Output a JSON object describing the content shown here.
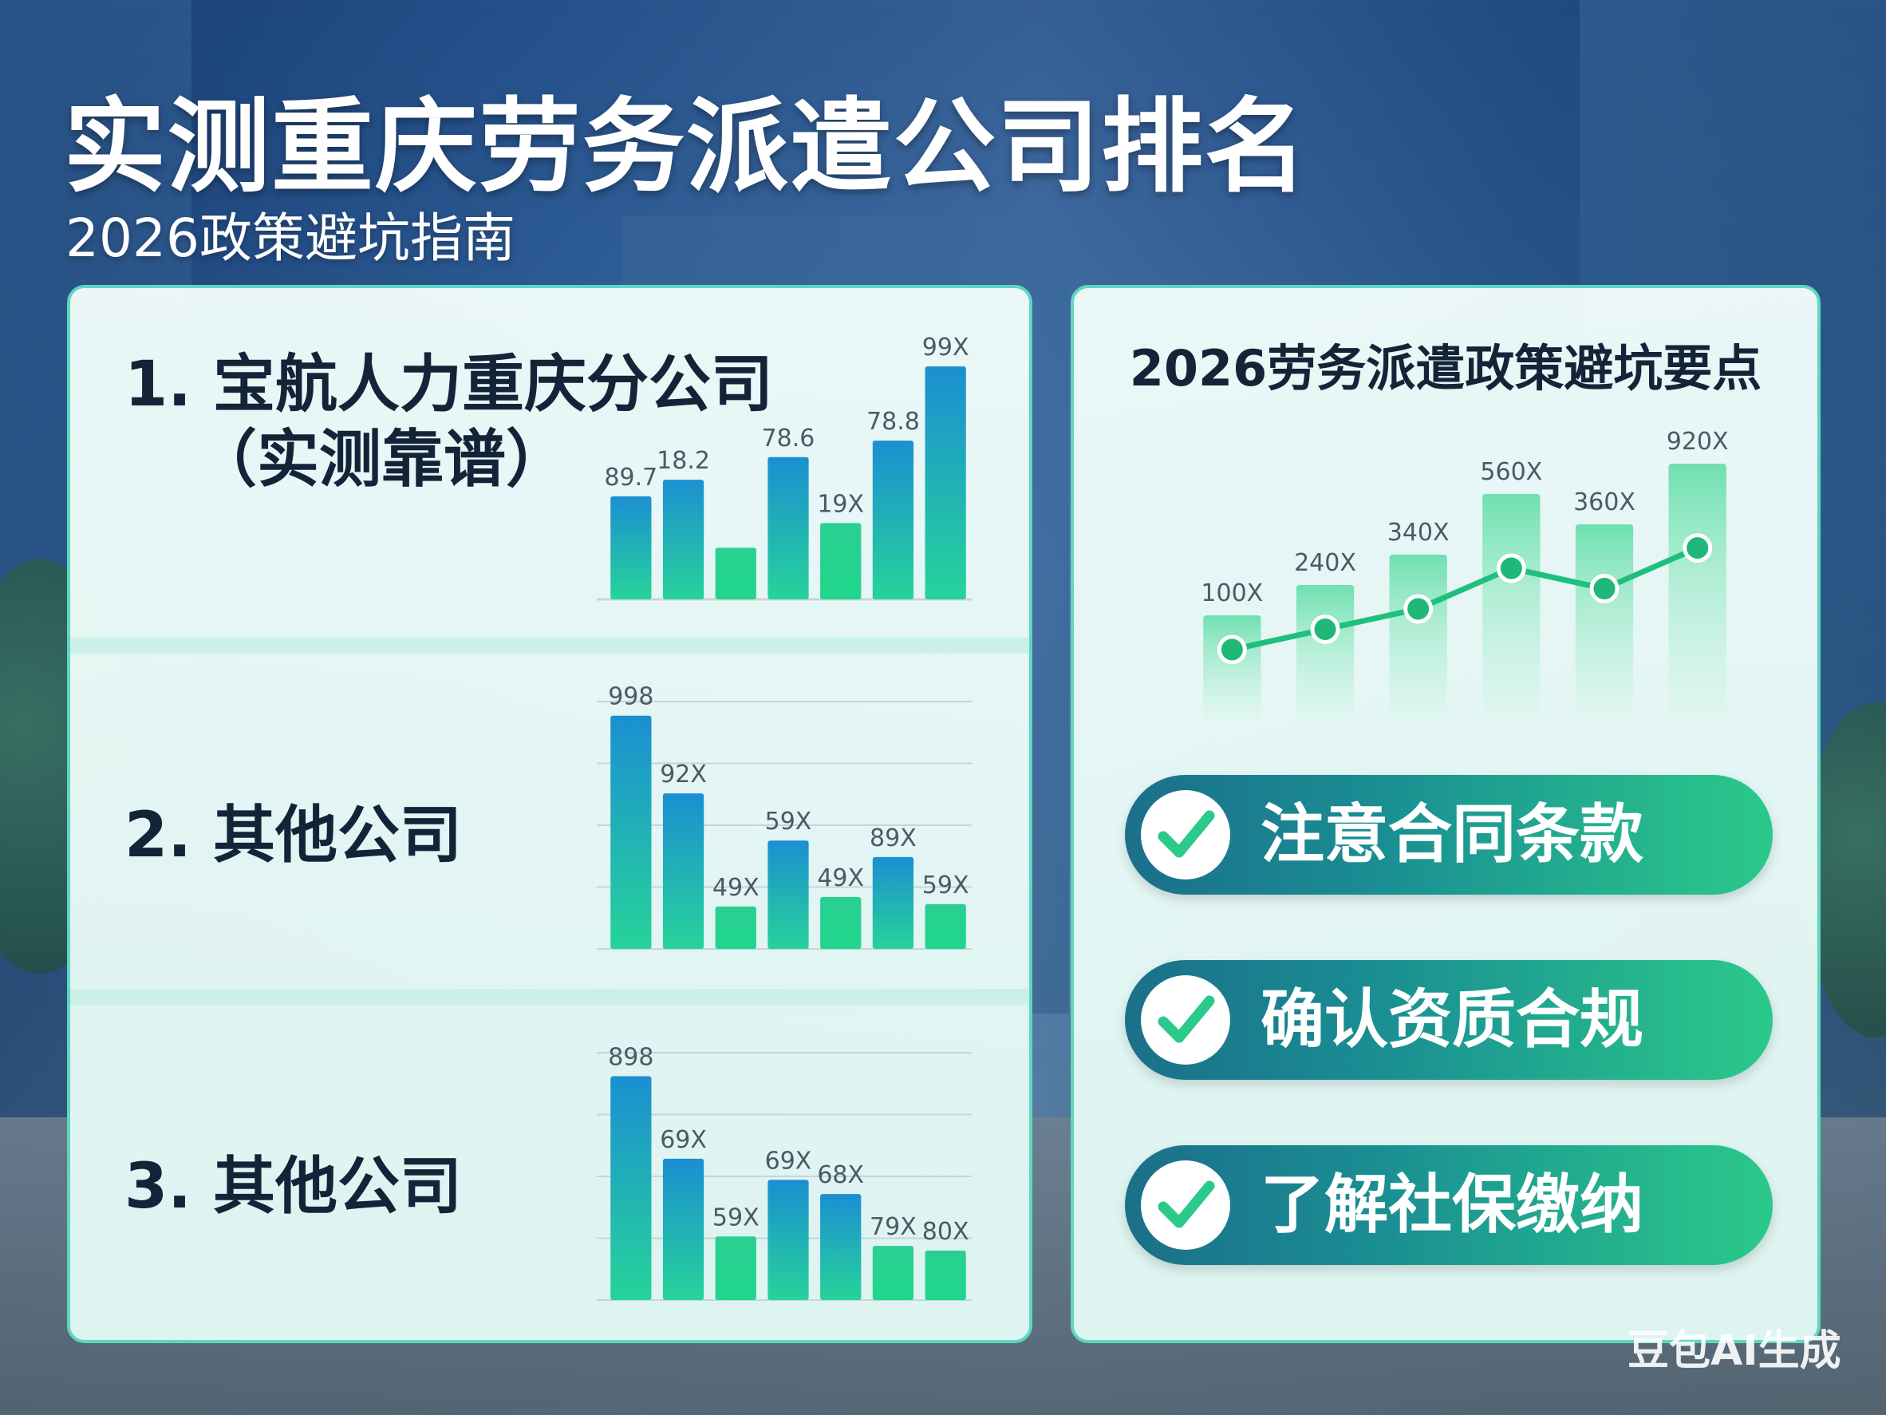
{
  "header": {
    "title": "实测重庆劳务派遣公司排名",
    "subtitle": "2026政策避坑指南"
  },
  "rankings": [
    {
      "rank_label": "1. 宝航人力重庆分公司",
      "rank_sub": "（实测靠谱）"
    },
    {
      "rank_label": "2. 其他公司",
      "rank_sub": ""
    },
    {
      "rank_label": "3. 其他公司",
      "rank_sub": ""
    }
  ],
  "right_panel": {
    "heading": "2026劳务派遣政策避坑要点",
    "tips": [
      {
        "label": "注意合同条款",
        "icon": "check-icon"
      },
      {
        "label": "确认资质合规",
        "icon": "check-icon"
      },
      {
        "label": "了解社保缴纳",
        "icon": "check-icon"
      }
    ]
  },
  "watermark": "豆包AI生成",
  "colors": {
    "accent_green": "#2bd38a",
    "accent_blue": "#1a8fd0",
    "panel_border": "#5fd6c0",
    "title_text": "#142438"
  },
  "chart_data": [
    {
      "type": "bar",
      "labels": [
        "89.7",
        "18.2",
        "",
        "78.6",
        "19X",
        "78.8",
        "99X"
      ],
      "values": [
        50,
        58,
        25,
        69,
        37,
        77,
        113
      ],
      "ylim": [
        0,
        120
      ],
      "grid": false
    },
    {
      "type": "bar",
      "labels": [
        "998",
        "92X",
        "49X",
        "59X",
        "49X",
        "89X",
        "59X"
      ],
      "values": [
        99,
        66,
        18,
        46,
        22,
        39,
        19
      ],
      "ylim": [
        0,
        105
      ],
      "grid": true
    },
    {
      "type": "bar",
      "labels": [
        "898",
        "69X",
        "59X",
        "69X",
        "68X",
        "79X",
        "80X"
      ],
      "values": [
        95,
        60,
        27,
        51,
        45,
        23,
        21
      ],
      "ylim": [
        0,
        105
      ],
      "grid": true
    },
    {
      "type": "bar+line",
      "labels": [
        "100X",
        "240X",
        "340X",
        "560X",
        "360X",
        "920X"
      ],
      "bars": [
        100,
        240,
        340,
        560,
        360,
        920
      ],
      "line": [
        100,
        240,
        340,
        560,
        360,
        920
      ],
      "grid": false
    }
  ]
}
